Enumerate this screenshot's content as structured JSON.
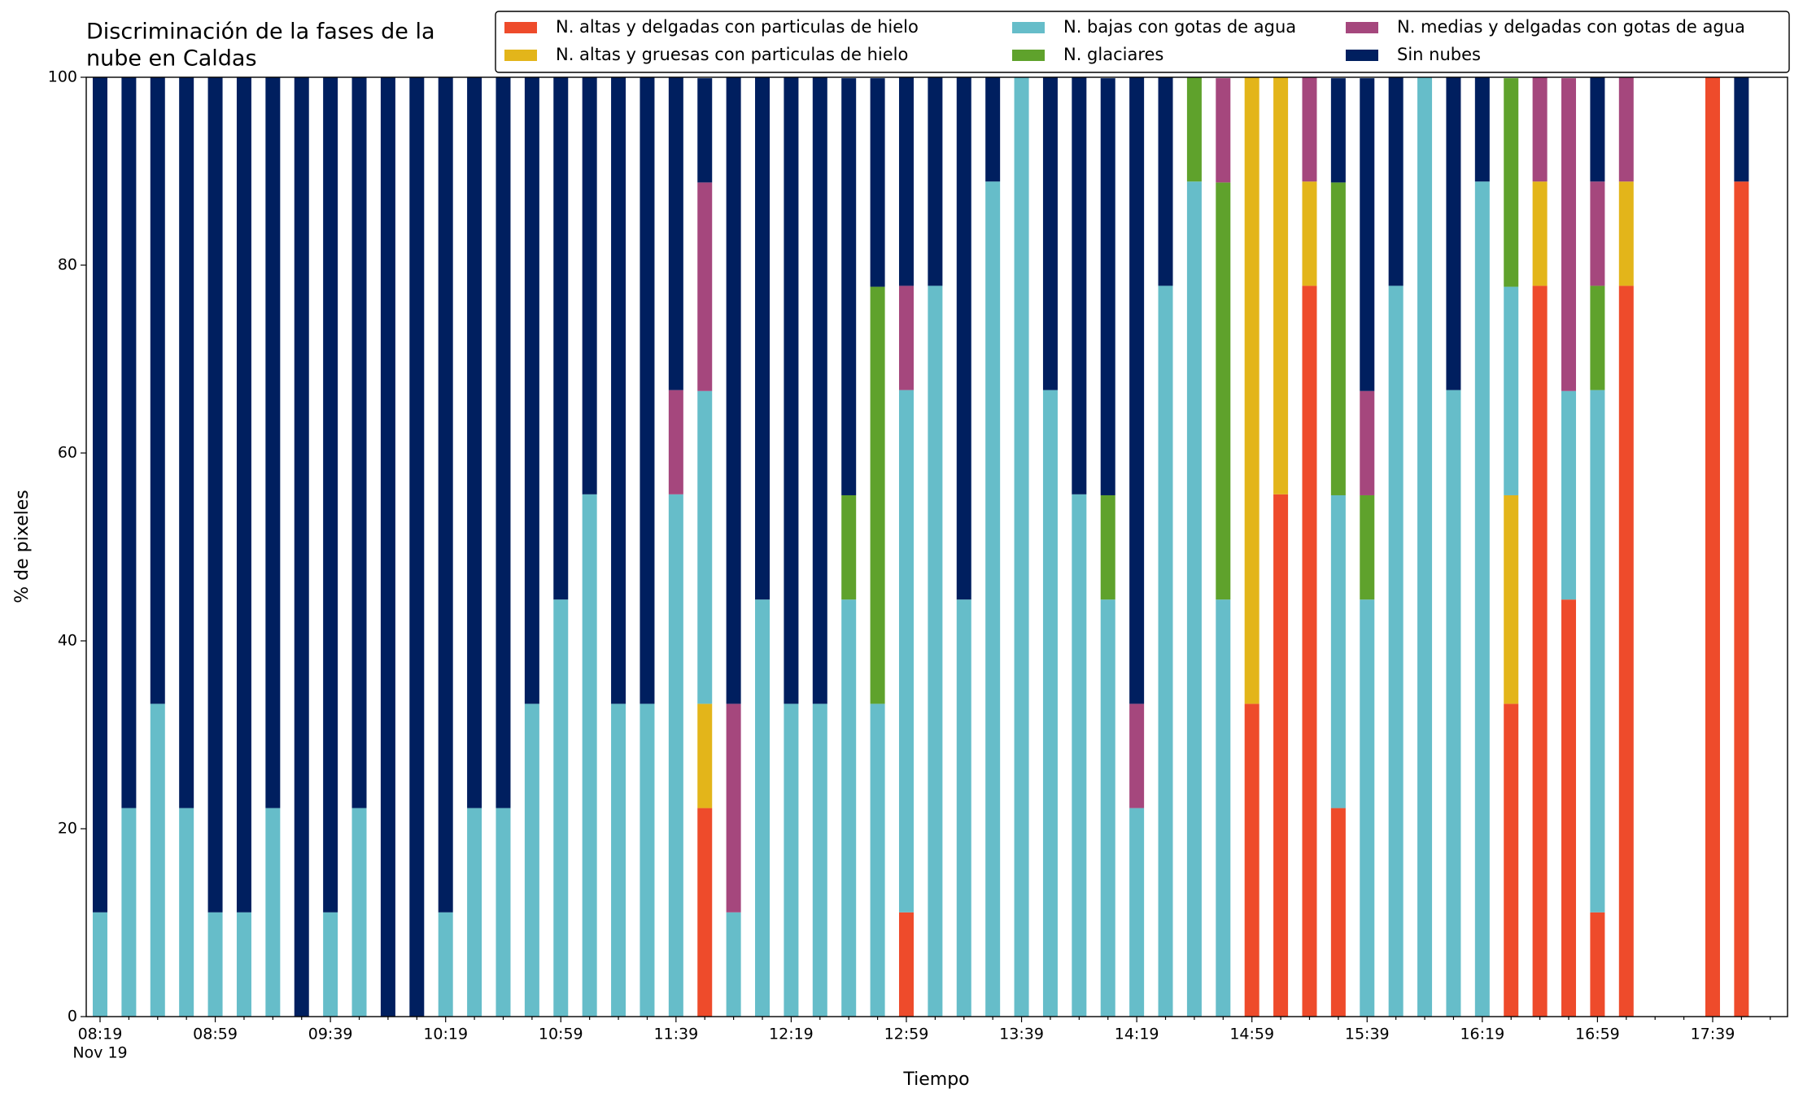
{
  "chart_data": {
    "type": "stacked_bar",
    "title": [
      "Discriminación de la fases de la",
      "nube en Caldas"
    ],
    "x_label": "Tiempo",
    "y_label": "% de pixeles",
    "x_date_label": "Nov 19",
    "categories": [
      "08:19",
      null,
      null,
      null,
      "08:59",
      null,
      null,
      null,
      "09:39",
      null,
      null,
      null,
      "10:19",
      null,
      null,
      null,
      "10:59",
      null,
      null,
      null,
      "11:39",
      null,
      null,
      null,
      "12:19",
      null,
      null,
      null,
      "12:59",
      null,
      null,
      null,
      "13:39",
      null,
      null,
      null,
      "14:19",
      null,
      null,
      null,
      "14:59",
      null,
      null,
      null,
      "15:39",
      null,
      null,
      null,
      "16:19",
      null,
      null,
      null,
      "16:59",
      null,
      null,
      null,
      "17:39",
      null
    ],
    "ylim": [
      0,
      100
    ],
    "yticks": [
      0,
      20,
      40,
      60,
      80,
      100
    ],
    "grid": false,
    "legend_position": "top",
    "series": [
      {
        "name": "N. altas y delgadas con particulas de hielo",
        "color": "#ee4b2b",
        "values": [
          0,
          0,
          0,
          0,
          0,
          0,
          0,
          0,
          0,
          0,
          0,
          0,
          0,
          0,
          0,
          0,
          0,
          0,
          0,
          0,
          0,
          22.2,
          0,
          0,
          0,
          0,
          0,
          0,
          11.1,
          0,
          0,
          0,
          0,
          0,
          0,
          0,
          0,
          0,
          0,
          0,
          33.3,
          55.6,
          77.8,
          22.2,
          0,
          0,
          0,
          0,
          0,
          33.3,
          77.8,
          44.4,
          11.1,
          77.8,
          0,
          0,
          100,
          88.9
        ]
      },
      {
        "name": "N. altas y gruesas con particulas de hielo",
        "color": "#e3b51a",
        "values": [
          0,
          0,
          0,
          0,
          0,
          0,
          0,
          0,
          0,
          0,
          0,
          0,
          0,
          0,
          0,
          0,
          0,
          0,
          0,
          0,
          0,
          11.1,
          0,
          0,
          0,
          0,
          0,
          0,
          0,
          0,
          0,
          0,
          0,
          0,
          0,
          0,
          0,
          0,
          0,
          0,
          66.7,
          44.4,
          11.1,
          0,
          0,
          0,
          0,
          0,
          0,
          22.2,
          11.1,
          0,
          0,
          11.1,
          0,
          0,
          0,
          0
        ]
      },
      {
        "name": "N. bajas con gotas de agua",
        "color": "#66bdc9",
        "values": [
          11.1,
          22.2,
          33.3,
          22.2,
          11.1,
          11.1,
          22.2,
          0,
          11.1,
          22.2,
          0,
          0,
          11.1,
          22.2,
          22.2,
          33.3,
          44.4,
          55.6,
          33.3,
          33.3,
          55.6,
          33.3,
          11.1,
          44.4,
          33.3,
          33.3,
          44.4,
          33.3,
          55.6,
          77.8,
          44.4,
          88.9,
          100,
          66.7,
          55.6,
          44.4,
          22.2,
          77.8,
          88.9,
          44.4,
          0,
          0,
          0,
          33.3,
          44.4,
          77.8,
          100,
          66.7,
          88.9,
          22.2,
          0,
          22.2,
          55.6,
          0,
          0,
          0,
          0,
          0
        ]
      },
      {
        "name": "N. glaciares",
        "color": "#5fa22c",
        "values": [
          0,
          0,
          0,
          0,
          0,
          0,
          0,
          0,
          0,
          0,
          0,
          0,
          0,
          0,
          0,
          0,
          0,
          0,
          0,
          0,
          0,
          0,
          0,
          0,
          0,
          0,
          11.1,
          44.4,
          0,
          0,
          0,
          0,
          0,
          0,
          0,
          11.1,
          0,
          0,
          11.1,
          44.4,
          0,
          0,
          0,
          33.3,
          11.1,
          0,
          0,
          0,
          0,
          22.2,
          0,
          0,
          11.1,
          0,
          0,
          0,
          0,
          0
        ]
      },
      {
        "name": "N. medias y delgadas con gotas de agua",
        "color": "#a5477d",
        "values": [
          0,
          0,
          0,
          0,
          0,
          0,
          0,
          0,
          0,
          0,
          0,
          0,
          0,
          0,
          0,
          0,
          0,
          0,
          0,
          0,
          11.1,
          22.2,
          22.2,
          0,
          0,
          0,
          0,
          0,
          11.1,
          0,
          0,
          0,
          0,
          0,
          0,
          0,
          11.1,
          0,
          0,
          11.1,
          0,
          0,
          11.1,
          0,
          11.1,
          0,
          0,
          0,
          0,
          0,
          11.1,
          33.3,
          11.1,
          11.1,
          0,
          0,
          0,
          0
        ]
      },
      {
        "name": "Sin nubes",
        "color": "#001f5f",
        "values": [
          88.9,
          77.8,
          66.7,
          77.8,
          88.9,
          88.9,
          77.8,
          100,
          88.9,
          77.8,
          100,
          100,
          88.9,
          77.8,
          77.8,
          66.7,
          55.6,
          44.4,
          66.7,
          66.7,
          33.3,
          11.1,
          66.7,
          55.6,
          66.7,
          66.7,
          44.4,
          22.2,
          22.2,
          22.2,
          55.6,
          11.1,
          0,
          33.3,
          44.4,
          44.4,
          66.7,
          22.2,
          0,
          0,
          0,
          0,
          0,
          11.1,
          33.3,
          22.2,
          0,
          33.3,
          11.1,
          0,
          0,
          0,
          11.1,
          0,
          0,
          0,
          0,
          11.1
        ]
      }
    ]
  }
}
